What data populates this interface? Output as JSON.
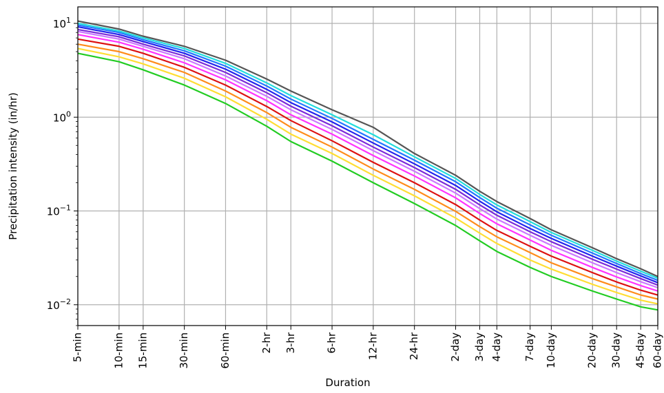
{
  "chart_data": {
    "type": "line",
    "xlabel": "Duration",
    "ylabel": "Precipitation intensity (in/hr)",
    "y_scale": "log",
    "ylim": [
      0.006,
      15
    ],
    "grid": true,
    "categories": [
      "5-min",
      "10-min",
      "15-min",
      "30-min",
      "60-min",
      "2-hr",
      "3-hr",
      "6-hr",
      "12-hr",
      "24-hr",
      "2-day",
      "3-day",
      "4-day",
      "7-day",
      "10-day",
      "20-day",
      "30-day",
      "45-day",
      "60-day"
    ],
    "x_hours": [
      0.0833,
      0.1667,
      0.25,
      0.5,
      1,
      2,
      3,
      6,
      12,
      24,
      48,
      72,
      96,
      168,
      240,
      480,
      720,
      1080,
      1440
    ],
    "y_ticks": [
      {
        "base": "10",
        "exp": "1",
        "value": 10
      },
      {
        "base": "10",
        "exp": "0",
        "value": 1
      },
      {
        "base": "10",
        "exp": "−1",
        "value": 0.1
      },
      {
        "base": "10",
        "exp": "−2",
        "value": 0.01
      }
    ],
    "series": [
      {
        "color": "#22cc22",
        "values": [
          4.8,
          3.9,
          3.2,
          2.2,
          1.4,
          0.8,
          0.55,
          0.34,
          0.2,
          0.12,
          0.07,
          0.048,
          0.037,
          0.025,
          0.02,
          0.014,
          0.0115,
          0.0095,
          0.0088
        ]
      },
      {
        "color": "#ffdd33",
        "values": [
          5.4,
          4.4,
          3.7,
          2.6,
          1.65,
          0.95,
          0.66,
          0.41,
          0.24,
          0.145,
          0.084,
          0.058,
          0.045,
          0.03,
          0.024,
          0.0165,
          0.0135,
          0.0112,
          0.0102
        ]
      },
      {
        "color": "#ff8c1a",
        "values": [
          6.0,
          5.0,
          4.2,
          3.0,
          1.9,
          1.12,
          0.78,
          0.48,
          0.28,
          0.17,
          0.099,
          0.068,
          0.053,
          0.036,
          0.028,
          0.019,
          0.0155,
          0.0127,
          0.0115
        ]
      },
      {
        "color": "#dd1111",
        "values": [
          6.8,
          5.7,
          4.8,
          3.4,
          2.2,
          1.3,
          0.92,
          0.56,
          0.33,
          0.2,
          0.117,
          0.08,
          0.062,
          0.042,
          0.033,
          0.022,
          0.0175,
          0.0143,
          0.0127
        ]
      },
      {
        "color": "#ff33ff",
        "values": [
          7.6,
          6.3,
          5.3,
          3.8,
          2.5,
          1.5,
          1.06,
          0.66,
          0.39,
          0.236,
          0.138,
          0.094,
          0.073,
          0.049,
          0.038,
          0.025,
          0.0198,
          0.016,
          0.014
        ]
      },
      {
        "color": "#cc77ff",
        "values": [
          8.2,
          6.8,
          5.7,
          4.2,
          2.75,
          1.67,
          1.2,
          0.74,
          0.44,
          0.265,
          0.155,
          0.106,
          0.082,
          0.055,
          0.043,
          0.028,
          0.022,
          0.0176,
          0.0152
        ]
      },
      {
        "color": "#7a2bd8",
        "values": [
          8.6,
          7.2,
          6.0,
          4.5,
          3.0,
          1.82,
          1.31,
          0.81,
          0.48,
          0.29,
          0.17,
          0.116,
          0.09,
          0.06,
          0.047,
          0.0305,
          0.024,
          0.019,
          0.0162
        ]
      },
      {
        "color": "#2222ee",
        "values": [
          9.2,
          7.6,
          6.4,
          4.8,
          3.25,
          1.98,
          1.43,
          0.89,
          0.53,
          0.318,
          0.187,
          0.127,
          0.098,
          0.065,
          0.051,
          0.033,
          0.0258,
          0.0203,
          0.0172
        ]
      },
      {
        "color": "#2277ff",
        "values": [
          9.6,
          8.0,
          6.7,
          5.1,
          3.5,
          2.15,
          1.56,
          0.97,
          0.58,
          0.348,
          0.205,
          0.139,
          0.107,
          0.071,
          0.055,
          0.0355,
          0.0275,
          0.0215,
          0.0182
        ]
      },
      {
        "color": "#22dddd",
        "values": [
          10.0,
          8.3,
          7.0,
          5.4,
          3.75,
          2.32,
          1.7,
          1.06,
          0.65,
          0.378,
          0.222,
          0.15,
          0.116,
          0.077,
          0.059,
          0.038,
          0.0292,
          0.0228,
          0.0192
        ]
      },
      {
        "color": "#555555",
        "values": [
          10.6,
          8.7,
          7.3,
          5.7,
          4.05,
          2.55,
          1.9,
          1.2,
          0.78,
          0.41,
          0.24,
          0.162,
          0.126,
          0.083,
          0.063,
          0.0405,
          0.031,
          0.0242,
          0.02
        ]
      }
    ]
  }
}
